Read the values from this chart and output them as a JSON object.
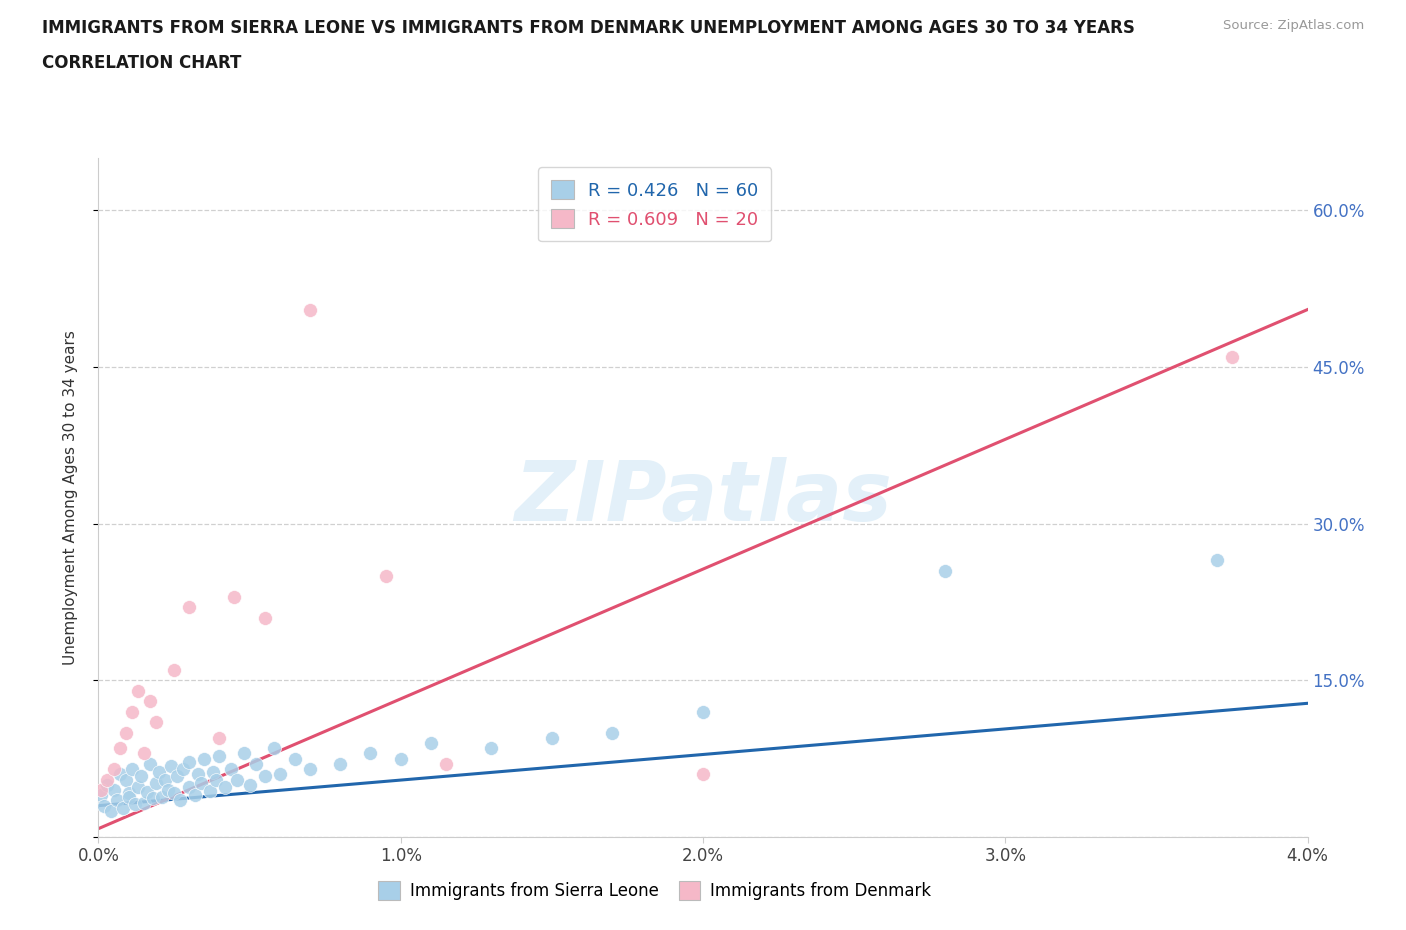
{
  "title_line1": "IMMIGRANTS FROM SIERRA LEONE VS IMMIGRANTS FROM DENMARK UNEMPLOYMENT AMONG AGES 30 TO 34 YEARS",
  "title_line2": "CORRELATION CHART",
  "source": "Source: ZipAtlas.com",
  "ylabel": "Unemployment Among Ages 30 to 34 years",
  "xlim": [
    0.0,
    0.04
  ],
  "ylim": [
    0.0,
    0.65
  ],
  "yticks": [
    0.0,
    0.15,
    0.3,
    0.45,
    0.6
  ],
  "ytick_labels_right": [
    "",
    "15.0%",
    "30.0%",
    "45.0%",
    "60.0%"
  ],
  "xticks": [
    0.0,
    0.01,
    0.02,
    0.03,
    0.04
  ],
  "xtick_labels": [
    "0.0%",
    "1.0%",
    "2.0%",
    "3.0%",
    "4.0%"
  ],
  "color_blue": "#a8cfe8",
  "color_pink": "#f5b8c8",
  "color_blue_line": "#2166ac",
  "color_pink_line": "#e05070",
  "legend_r1": "R = 0.426",
  "legend_n1": "N = 60",
  "legend_r2": "R = 0.609",
  "legend_n2": "N = 20",
  "watermark": "ZIPatlas",
  "sl_trend_x0": 0.0,
  "sl_trend_y0": 0.03,
  "sl_trend_x1": 0.04,
  "sl_trend_y1": 0.128,
  "dk_trend_x0": 0.0,
  "dk_trend_y0": 0.008,
  "dk_trend_x1": 0.04,
  "dk_trend_y1": 0.505,
  "sierra_leone_x": [
    0.0001,
    0.0002,
    0.0003,
    0.0004,
    0.0005,
    0.0006,
    0.0007,
    0.0008,
    0.0009,
    0.001,
    0.001,
    0.0011,
    0.0012,
    0.0013,
    0.0014,
    0.0015,
    0.0016,
    0.0017,
    0.0018,
    0.0019,
    0.002,
    0.0021,
    0.0022,
    0.0023,
    0.0024,
    0.0025,
    0.0026,
    0.0027,
    0.0028,
    0.003,
    0.003,
    0.0032,
    0.0033,
    0.0034,
    0.0035,
    0.0037,
    0.0038,
    0.0039,
    0.004,
    0.0042,
    0.0044,
    0.0046,
    0.0048,
    0.005,
    0.0052,
    0.0055,
    0.0058,
    0.006,
    0.0065,
    0.007,
    0.008,
    0.009,
    0.01,
    0.011,
    0.013,
    0.015,
    0.017,
    0.02,
    0.028,
    0.037
  ],
  "sierra_leone_y": [
    0.04,
    0.03,
    0.05,
    0.025,
    0.045,
    0.035,
    0.06,
    0.028,
    0.055,
    0.042,
    0.038,
    0.065,
    0.032,
    0.048,
    0.058,
    0.033,
    0.043,
    0.07,
    0.037,
    0.052,
    0.062,
    0.038,
    0.055,
    0.045,
    0.068,
    0.042,
    0.058,
    0.035,
    0.065,
    0.048,
    0.072,
    0.04,
    0.06,
    0.052,
    0.075,
    0.044,
    0.062,
    0.055,
    0.078,
    0.048,
    0.065,
    0.055,
    0.08,
    0.05,
    0.07,
    0.058,
    0.085,
    0.06,
    0.075,
    0.065,
    0.07,
    0.08,
    0.075,
    0.09,
    0.085,
    0.095,
    0.1,
    0.12,
    0.255,
    0.265
  ],
  "denmark_x": [
    0.0001,
    0.0003,
    0.0005,
    0.0007,
    0.0009,
    0.0011,
    0.0013,
    0.0015,
    0.0017,
    0.0019,
    0.0025,
    0.003,
    0.004,
    0.0045,
    0.0055,
    0.007,
    0.0095,
    0.0115,
    0.02,
    0.0375
  ],
  "denmark_y": [
    0.045,
    0.055,
    0.065,
    0.085,
    0.1,
    0.12,
    0.14,
    0.08,
    0.13,
    0.11,
    0.16,
    0.22,
    0.095,
    0.23,
    0.21,
    0.505,
    0.25,
    0.07,
    0.06,
    0.46
  ]
}
